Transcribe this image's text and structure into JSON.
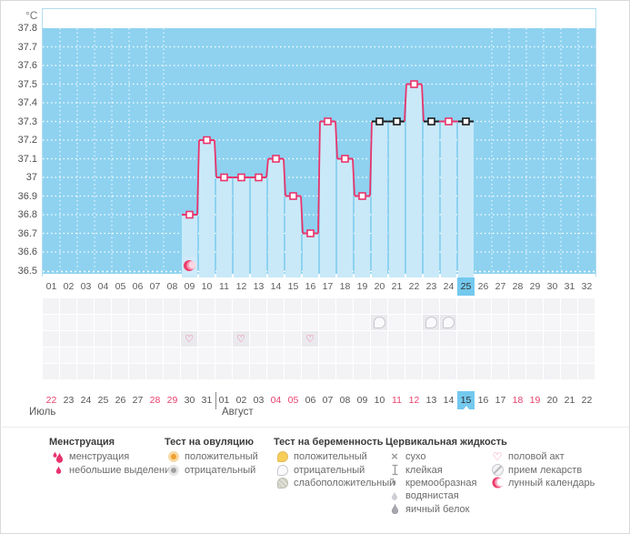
{
  "colors": {
    "accent_pink": "#e9346b",
    "black_marker": "#1c1c1c",
    "chart_bg": "#8ed2f0",
    "bar_fill": "#c9e9f8",
    "highlight_blue": "#74c9ee",
    "weekend_red": "#e8436f",
    "grid_icon_cell": "#eaeaee"
  },
  "chart_data": {
    "type": "line",
    "unit": "°C",
    "ylim": [
      36.5,
      37.8
    ],
    "yticks": [
      "37.8",
      "37.7",
      "37.6",
      "37.5",
      "37.4",
      "37.3",
      "37.2",
      "37.1",
      "37",
      "36.9",
      "36.8",
      "36.7",
      "36.6",
      "36.5"
    ],
    "x_days": [
      "01",
      "02",
      "03",
      "04",
      "05",
      "06",
      "07",
      "08",
      "09",
      "10",
      "11",
      "12",
      "13",
      "14",
      "15",
      "16",
      "17",
      "18",
      "19",
      "20",
      "21",
      "22",
      "23",
      "24",
      "25",
      "26",
      "27",
      "28",
      "29",
      "30",
      "31",
      "32"
    ],
    "today_day": "25",
    "points": [
      {
        "day": 9,
        "temp": 36.8,
        "marker": "pink"
      },
      {
        "day": 10,
        "temp": 37.2,
        "marker": "pink"
      },
      {
        "day": 11,
        "temp": 37.0,
        "marker": "pink"
      },
      {
        "day": 12,
        "temp": 37.0,
        "marker": "pink"
      },
      {
        "day": 13,
        "temp": 37.0,
        "marker": "pink"
      },
      {
        "day": 14,
        "temp": 37.1,
        "marker": "pink"
      },
      {
        "day": 15,
        "temp": 36.9,
        "marker": "pink"
      },
      {
        "day": 16,
        "temp": 36.7,
        "marker": "pink"
      },
      {
        "day": 17,
        "temp": 37.3,
        "marker": "pink"
      },
      {
        "day": 18,
        "temp": 37.1,
        "marker": "pink"
      },
      {
        "day": 19,
        "temp": 36.9,
        "marker": "pink"
      },
      {
        "day": 20,
        "temp": 37.3,
        "marker": "black"
      },
      {
        "day": 21,
        "temp": 37.3,
        "marker": "black"
      },
      {
        "day": 22,
        "temp": 37.5,
        "marker": "pink"
      },
      {
        "day": 23,
        "temp": 37.3,
        "marker": "black"
      },
      {
        "day": 24,
        "temp": 37.3,
        "marker": "pink"
      },
      {
        "day": 25,
        "temp": 37.3,
        "marker": "black"
      }
    ],
    "lunar_marker_day": 9,
    "grid_rows": 5,
    "grid_markers": {
      "pregnancy_test_negative": {
        "row": 2,
        "days": [
          20,
          23,
          24
        ]
      },
      "intercourse": {
        "row": 3,
        "days": [
          9,
          12,
          16
        ]
      }
    }
  },
  "calendar": {
    "cells": [
      {
        "label": "22",
        "red": true
      },
      {
        "label": "23"
      },
      {
        "label": "24"
      },
      {
        "label": "25"
      },
      {
        "label": "26"
      },
      {
        "label": "27"
      },
      {
        "label": "28",
        "red": true
      },
      {
        "label": "29",
        "red": true
      },
      {
        "label": "30"
      },
      {
        "label": "31"
      },
      {
        "label": "01"
      },
      {
        "label": "02"
      },
      {
        "label": "03"
      },
      {
        "label": "04",
        "red": true
      },
      {
        "label": "05",
        "red": true
      },
      {
        "label": "06"
      },
      {
        "label": "07"
      },
      {
        "label": "08"
      },
      {
        "label": "09"
      },
      {
        "label": "10"
      },
      {
        "label": "11",
        "red": true
      },
      {
        "label": "12",
        "red": true
      },
      {
        "label": "13"
      },
      {
        "label": "14"
      },
      {
        "label": "15",
        "today": true
      },
      {
        "label": "16"
      },
      {
        "label": "17"
      },
      {
        "label": "18",
        "red": true
      },
      {
        "label": "19",
        "red": true
      },
      {
        "label": "20"
      },
      {
        "label": "21"
      },
      {
        "label": "22"
      }
    ],
    "months": [
      {
        "label": "Июль"
      },
      {
        "label": "Август"
      }
    ]
  },
  "legend": {
    "columns": [
      {
        "header": "Менструация",
        "items": [
          {
            "icon": "menstruation-heavy-icon",
            "label": "менструация"
          },
          {
            "icon": "menstruation-light-icon",
            "label": "небольшие выделения"
          }
        ]
      },
      {
        "header": "Тест на овуляцию",
        "items": [
          {
            "icon": "ovulation-positive-icon",
            "label": "положительный"
          },
          {
            "icon": "ovulation-negative-icon",
            "label": "отрицательный"
          }
        ]
      },
      {
        "header": "Тест на беременность",
        "items": [
          {
            "icon": "pregnancy-positive-icon",
            "label": "положительный"
          },
          {
            "icon": "pregnancy-negative-icon",
            "label": "отрицательный"
          },
          {
            "icon": "pregnancy-weak-positive-icon",
            "label": "слабоположительный"
          }
        ]
      },
      {
        "header": "Цервикальная жидкость",
        "items": [
          {
            "icon": "dry-icon",
            "label": "сухо"
          },
          {
            "icon": "sticky-icon",
            "label": "клейкая"
          },
          {
            "icon": "creamy-icon",
            "label": "кремообразная"
          },
          {
            "icon": "watery-icon",
            "label": "водянистая"
          },
          {
            "icon": "eggwhite-icon",
            "label": "яичный белок"
          }
        ]
      },
      {
        "header": "",
        "items": [
          {
            "icon": "intercourse-icon",
            "label": "половой акт"
          },
          {
            "icon": "medication-icon",
            "label": "прием лекарств"
          },
          {
            "icon": "lunar-icon",
            "label": "лунный календарь"
          }
        ]
      }
    ]
  }
}
